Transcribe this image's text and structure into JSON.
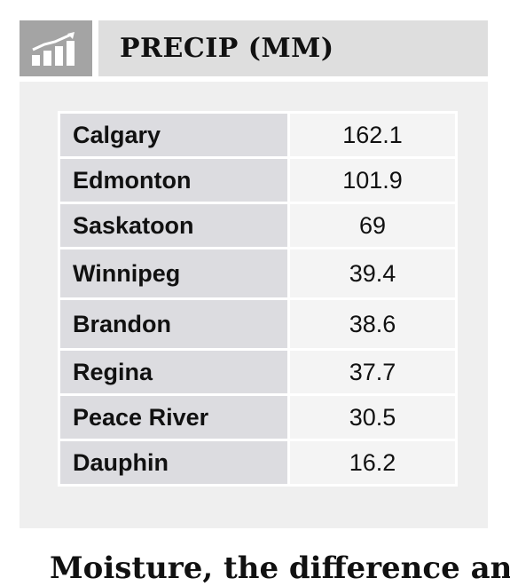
{
  "header": {
    "icon": "bar-chart-icon",
    "title": "PRECIP (MM)"
  },
  "rows": [
    {
      "city": "Calgary",
      "value": "162.1"
    },
    {
      "city": "Edmonton",
      "value": "101.9"
    },
    {
      "city": "Saskatoon",
      "value": "69"
    },
    {
      "city": "Winnipeg",
      "value": "39.4"
    },
    {
      "city": "Brandon",
      "value": "38.6"
    },
    {
      "city": "Regina",
      "value": "37.7"
    },
    {
      "city": "Peace River",
      "value": "30.5"
    },
    {
      "city": "Dauphin",
      "value": "16.2"
    }
  ],
  "footer": {
    "partial_text": "Moisture, the difference and"
  },
  "colors": {
    "icon_box": "#a4a4a4",
    "title_box": "#dedede",
    "panel": "#efefef",
    "city_cell": "#dcdce0",
    "value_cell": "#f4f4f4"
  }
}
